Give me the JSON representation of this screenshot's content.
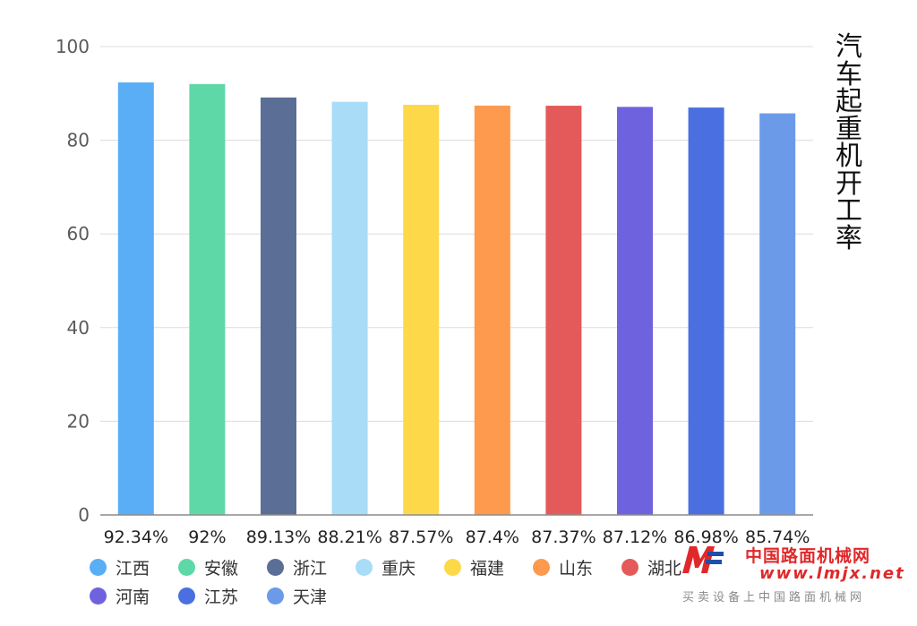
{
  "chart_data": {
    "type": "bar",
    "categories": [
      "江西",
      "安徽",
      "浙江",
      "重庆",
      "福建",
      "山东",
      "湖北",
      "河南",
      "江苏",
      "天津"
    ],
    "values": [
      92.34,
      92,
      89.13,
      88.21,
      87.57,
      87.4,
      87.37,
      87.12,
      86.98,
      85.74
    ],
    "value_labels": [
      "92.34%",
      "92%",
      "89.13%",
      "88.21%",
      "87.57%",
      "87.4%",
      "87.37%",
      "87.12%",
      "86.98%",
      "85.74%"
    ],
    "colors": [
      "#5aaef5",
      "#5fd8a8",
      "#5a6e96",
      "#a8dcf7",
      "#fdd94a",
      "#fd9a4d",
      "#e45a5a",
      "#6f62de",
      "#4a6fe0",
      "#6b9ae8"
    ],
    "ylabel": "汽车起重机开工率",
    "ylim": [
      0,
      100
    ],
    "yticks": [
      0,
      20,
      40,
      60,
      80,
      100
    ],
    "grid": true,
    "legend_position": "bottom-left"
  },
  "watermark": {
    "name_cn": "中国路面机械网",
    "url": "www.lmjx.net",
    "slogan": "买卖设备上中国路面机械网",
    "logo_icon": "lmjx-logo-icon"
  }
}
